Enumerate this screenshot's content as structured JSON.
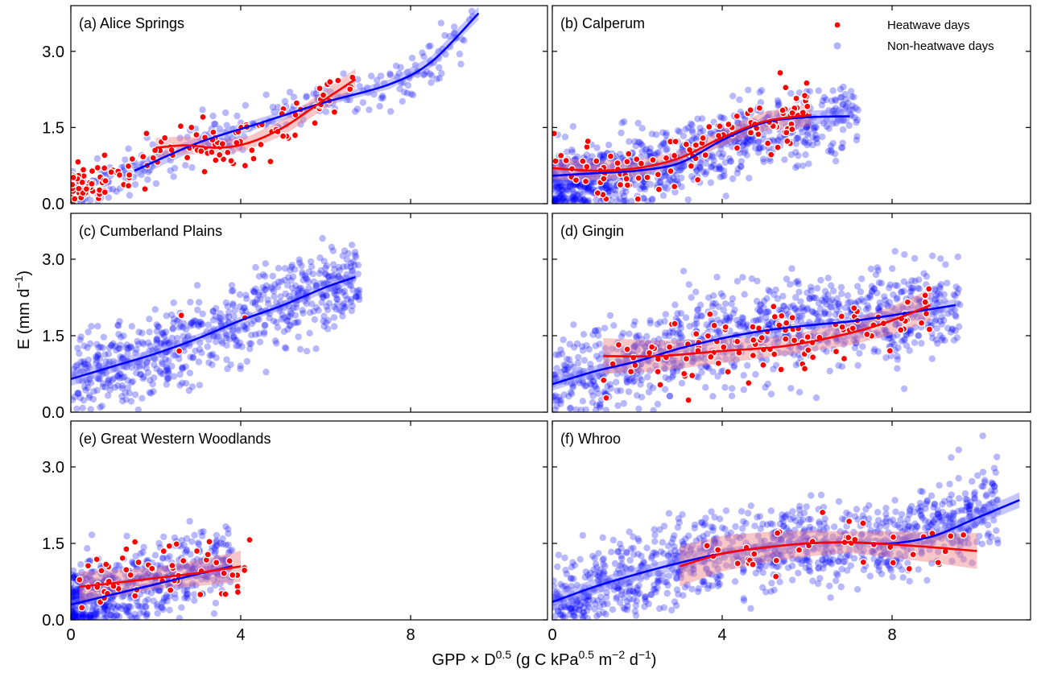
{
  "figure": {
    "ylabel_main": "E (mm d",
    "ylabel_sup": "−1",
    "ylabel_tail": ")",
    "xlabel_parts": [
      "GPP × D",
      "0.5",
      " (g C kPa",
      "0.5",
      " m",
      "−2",
      " d",
      "−1",
      ")"
    ],
    "legend": {
      "heatwave": "Heatwave days",
      "nonheatwave": "Non-heatwave days",
      "placement": "top-right of panel (b)"
    },
    "colors": {
      "heatwave": "#ff0000",
      "nonheatwave": "#0000ff",
      "heatwave_band": "#f08080",
      "nonheatwave_band": "#8080ff"
    },
    "xticks": [
      "0",
      "4",
      "8"
    ],
    "yticks": [
      "0.0",
      "1.5",
      "3.0"
    ]
  },
  "chart_data": [
    {
      "type": "scatter",
      "title": "(a) Alice Springs",
      "xlim": [
        0,
        11
      ],
      "ylim": [
        0,
        3.9
      ],
      "nonheat": {
        "n": 260,
        "x_range": [
          0,
          9.6
        ],
        "spread": 0.25,
        "trend": [
          [
            0,
            0.2
          ],
          [
            1.5,
            0.6
          ],
          [
            3,
            1.2
          ],
          [
            4.5,
            1.6
          ],
          [
            6,
            2.0
          ],
          [
            7.5,
            2.3
          ],
          [
            8.5,
            2.8
          ],
          [
            9.6,
            3.7
          ]
        ]
      },
      "heat": {
        "n": 150,
        "x_range": [
          0,
          6.7
        ],
        "spread": 0.2,
        "trend": [
          [
            0,
            0.25
          ],
          [
            1.5,
            0.7
          ],
          [
            2.5,
            1.15
          ],
          [
            3.5,
            1.1
          ],
          [
            4.5,
            1.2
          ],
          [
            5.5,
            1.8
          ],
          [
            6.7,
            2.45
          ]
        ]
      },
      "fit_nonheat": [
        [
          1.5,
          0.65
        ],
        [
          3,
          1.2
        ],
        [
          4.5,
          1.6
        ],
        [
          6,
          2.0
        ],
        [
          7.5,
          2.35
        ],
        [
          8.5,
          2.8
        ],
        [
          9.6,
          3.75
        ]
      ],
      "fit_heat": [
        [
          2,
          1.1
        ],
        [
          2.7,
          1.15
        ],
        [
          3.5,
          1.1
        ],
        [
          4.2,
          1.2
        ],
        [
          5,
          1.5
        ],
        [
          5.8,
          1.95
        ],
        [
          6.7,
          2.45
        ]
      ],
      "band_nonheat": 0.12,
      "band_heat": 0.22,
      "show_legend": false
    },
    {
      "type": "scatter",
      "title": "(b) Calperum",
      "xlim": [
        0,
        11
      ],
      "ylim": [
        0,
        3.9
      ],
      "nonheat": {
        "n": 900,
        "x_range": [
          0,
          7.2
        ],
        "spread": 0.35,
        "trend": [
          [
            0,
            0.35
          ],
          [
            2,
            0.6
          ],
          [
            3.5,
            1.0
          ],
          [
            5,
            1.5
          ],
          [
            7.2,
            1.7
          ]
        ]
      },
      "heat": {
        "n": 110,
        "x_range": [
          0,
          6.1
        ],
        "spread": 0.3,
        "trend": [
          [
            0,
            0.7
          ],
          [
            2,
            0.65
          ],
          [
            3,
            0.85
          ],
          [
            4,
            1.3
          ],
          [
            5,
            1.6
          ],
          [
            6.1,
            1.75
          ]
        ]
      },
      "fit_nonheat": [
        [
          0,
          0.55
        ],
        [
          1,
          0.6
        ],
        [
          2,
          0.65
        ],
        [
          3,
          0.8
        ],
        [
          4,
          1.25
        ],
        [
          5,
          1.6
        ],
        [
          6,
          1.7
        ],
        [
          7,
          1.72
        ]
      ],
      "fit_heat": [
        [
          0,
          0.7
        ],
        [
          1,
          0.65
        ],
        [
          2,
          0.7
        ],
        [
          3,
          0.9
        ],
        [
          4,
          1.3
        ],
        [
          5,
          1.62
        ],
        [
          6.1,
          1.75
        ]
      ],
      "band_nonheat": 0.15,
      "band_heat": 0.22,
      "show_legend": true
    },
    {
      "type": "scatter",
      "title": "(c) Cumberland Plains",
      "xlim": [
        0,
        11
      ],
      "ylim": [
        0,
        3.9
      ],
      "nonheat": {
        "n": 700,
        "x_range": [
          0,
          6.8
        ],
        "spread": 0.4,
        "trend": [
          [
            0,
            0.65
          ],
          [
            2,
            1.15
          ],
          [
            4,
            1.8
          ],
          [
            6.7,
            2.65
          ]
        ]
      },
      "heat": {
        "n": 3,
        "points": [
          [
            2.6,
            1.9
          ],
          [
            2.55,
            1.2
          ],
          [
            4.1,
            1.85
          ]
        ]
      },
      "fit_nonheat": [
        [
          0,
          0.65
        ],
        [
          1,
          0.9
        ],
        [
          2,
          1.15
        ],
        [
          3,
          1.45
        ],
        [
          4,
          1.8
        ],
        [
          5,
          2.1
        ],
        [
          6,
          2.45
        ],
        [
          6.7,
          2.65
        ]
      ],
      "fit_heat": [],
      "band_nonheat": 0.12,
      "band_heat": 0,
      "show_legend": false
    },
    {
      "type": "scatter",
      "title": "(d) Gingin",
      "xlim": [
        0,
        11
      ],
      "ylim": [
        0,
        3.9
      ],
      "nonheat": {
        "n": 1000,
        "x_range": [
          0,
          9.6
        ],
        "spread": 0.45,
        "trend": [
          [
            0,
            0.55
          ],
          [
            2,
            1.0
          ],
          [
            4,
            1.5
          ],
          [
            6,
            1.7
          ],
          [
            9.5,
            2.1
          ]
        ]
      },
      "heat": {
        "n": 110,
        "x_range": [
          1.2,
          8.9
        ],
        "spread": 0.35,
        "trend": [
          [
            1.2,
            1.1
          ],
          [
            3,
            1.15
          ],
          [
            5,
            1.3
          ],
          [
            7,
            1.55
          ],
          [
            8.9,
            2.1
          ]
        ]
      },
      "fit_nonheat": [
        [
          0,
          0.55
        ],
        [
          1,
          0.8
        ],
        [
          2,
          1.0
        ],
        [
          3,
          1.25
        ],
        [
          4,
          1.45
        ],
        [
          5,
          1.6
        ],
        [
          6,
          1.7
        ],
        [
          7,
          1.78
        ],
        [
          8,
          1.9
        ],
        [
          9.5,
          2.1
        ]
      ],
      "fit_heat": [
        [
          1.2,
          1.1
        ],
        [
          2.5,
          1.1
        ],
        [
          4,
          1.2
        ],
        [
          5.5,
          1.3
        ],
        [
          7,
          1.55
        ],
        [
          8,
          1.8
        ],
        [
          8.9,
          2.1
        ]
      ],
      "band_nonheat": 0.1,
      "band_heat": 0.3,
      "show_legend": false
    },
    {
      "type": "scatter",
      "title": "(e) Great Western Woodlands",
      "xlim": [
        0,
        11
      ],
      "ylim": [
        0,
        3.9
      ],
      "nonheat": {
        "n": 600,
        "x_range": [
          0,
          3.8
        ],
        "spread": 0.35,
        "trend": [
          [
            0,
            0.3
          ],
          [
            1,
            0.55
          ],
          [
            2,
            0.8
          ],
          [
            3.8,
            1.1
          ]
        ]
      },
      "heat": {
        "n": 60,
        "x_range": [
          0.2,
          4.3
        ],
        "spread": 0.3,
        "trend": [
          [
            0.2,
            0.6
          ],
          [
            2,
            0.85
          ],
          [
            4.3,
            1.1
          ]
        ]
      },
      "fit_nonheat": [
        [
          0,
          0.3
        ],
        [
          1,
          0.5
        ],
        [
          2,
          0.7
        ],
        [
          3,
          0.9
        ],
        [
          3.8,
          1.05
        ]
      ],
      "fit_heat": [
        [
          0.2,
          0.65
        ],
        [
          1,
          0.72
        ],
        [
          2,
          0.82
        ],
        [
          3,
          0.92
        ],
        [
          4,
          1.05
        ]
      ],
      "band_nonheat": 0.1,
      "band_heat": 0.35,
      "show_legend": false
    },
    {
      "type": "scatter",
      "title": "(f) Whroo",
      "xlim": [
        0,
        11
      ],
      "ylim": [
        0,
        3.9
      ],
      "nonheat": {
        "n": 1100,
        "x_range": [
          0,
          10.5
        ],
        "spread": 0.4,
        "trend": [
          [
            0,
            0.35
          ],
          [
            2,
            0.9
          ],
          [
            4,
            1.3
          ],
          [
            6,
            1.5
          ],
          [
            8,
            1.5
          ],
          [
            10.5,
            2.3
          ]
        ]
      },
      "heat": {
        "n": 40,
        "x_range": [
          3,
          9.9
        ],
        "spread": 0.25,
        "trend": [
          [
            3,
            1.0
          ],
          [
            5,
            1.4
          ],
          [
            7,
            1.5
          ],
          [
            9.9,
            1.35
          ]
        ]
      },
      "fit_nonheat": [
        [
          0,
          0.35
        ],
        [
          1,
          0.65
        ],
        [
          2,
          0.9
        ],
        [
          3,
          1.12
        ],
        [
          4,
          1.3
        ],
        [
          5,
          1.42
        ],
        [
          6,
          1.5
        ],
        [
          7,
          1.52
        ],
        [
          8,
          1.5
        ],
        [
          9,
          1.65
        ],
        [
          10,
          2.0
        ],
        [
          11,
          2.35
        ]
      ],
      "fit_heat": [
        [
          3,
          1.05
        ],
        [
          4,
          1.3
        ],
        [
          5,
          1.42
        ],
        [
          6,
          1.5
        ],
        [
          7,
          1.52
        ],
        [
          8,
          1.48
        ],
        [
          9,
          1.42
        ],
        [
          10,
          1.35
        ]
      ],
      "band_nonheat": 0.12,
      "band_heat": 0.35,
      "show_legend": false
    }
  ]
}
